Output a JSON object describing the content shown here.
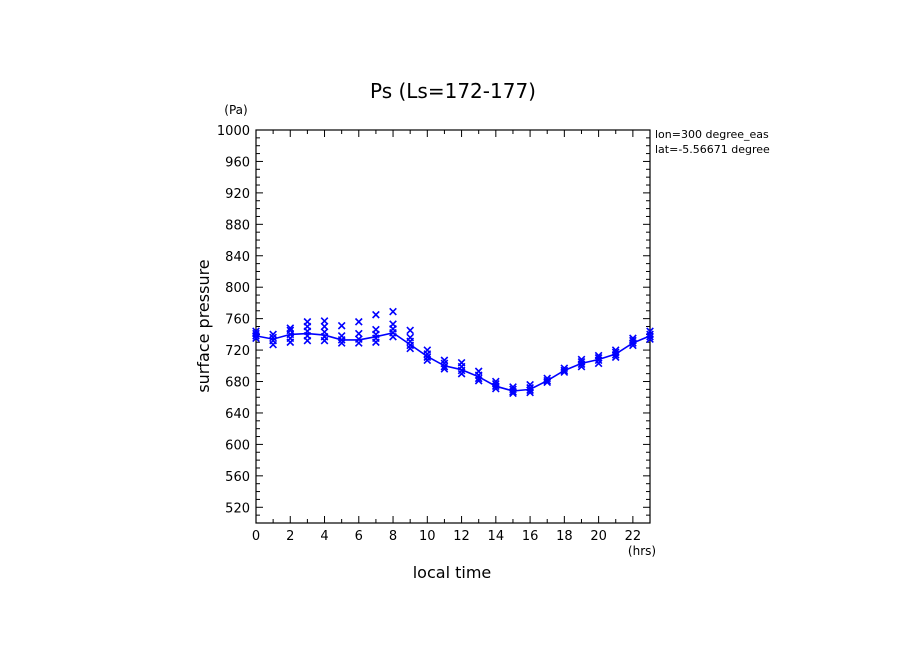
{
  "chart_data": {
    "type": "line",
    "title": "Ps (Ls=172-177)",
    "xlabel": "local time",
    "ylabel": "surface pressure",
    "x_unit": "(hrs)",
    "y_unit": "(Pa)",
    "xlim": [
      0,
      23
    ],
    "ylim": [
      500,
      1000
    ],
    "x_ticks": [
      0,
      2,
      4,
      6,
      8,
      10,
      12,
      14,
      16,
      18,
      20,
      22
    ],
    "y_ticks": [
      520,
      560,
      600,
      640,
      680,
      720,
      760,
      800,
      840,
      880,
      920,
      960,
      1000
    ],
    "grid": false,
    "annotations": [
      "lon=300 degree_eas",
      "lat=-5.56671 degree"
    ],
    "colors": {
      "series": "#0000ff",
      "axes": "#000000"
    },
    "series": [
      {
        "kind": "line",
        "x": [
          0,
          1,
          2,
          3,
          4,
          5,
          6,
          7,
          8,
          9,
          10,
          11,
          12,
          13,
          14,
          15,
          16,
          17,
          18,
          19,
          20,
          21,
          22,
          23
        ],
        "y": [
          738,
          734,
          740,
          741,
          739,
          733,
          733,
          737,
          742,
          727,
          712,
          700,
          695,
          686,
          674,
          668,
          670,
          681,
          694,
          703,
          708,
          715,
          729,
          738
        ]
      },
      {
        "kind": "scatter",
        "marker": "x",
        "points": [
          [
            0,
            735
          ],
          [
            0,
            738
          ],
          [
            0,
            741
          ],
          [
            0,
            744
          ],
          [
            1,
            727
          ],
          [
            1,
            732
          ],
          [
            1,
            736
          ],
          [
            1,
            740
          ],
          [
            2,
            730
          ],
          [
            2,
            735
          ],
          [
            2,
            740
          ],
          [
            2,
            745
          ],
          [
            2,
            748
          ],
          [
            3,
            732
          ],
          [
            3,
            738
          ],
          [
            3,
            744
          ],
          [
            3,
            750
          ],
          [
            3,
            756
          ],
          [
            4,
            732
          ],
          [
            4,
            737
          ],
          [
            4,
            743
          ],
          [
            4,
            750
          ],
          [
            4,
            757
          ],
          [
            5,
            729
          ],
          [
            5,
            733
          ],
          [
            5,
            738
          ],
          [
            5,
            751
          ],
          [
            6,
            729
          ],
          [
            6,
            734
          ],
          [
            6,
            741
          ],
          [
            6,
            756
          ],
          [
            7,
            730
          ],
          [
            7,
            735
          ],
          [
            7,
            740
          ],
          [
            7,
            746
          ],
          [
            7,
            765
          ],
          [
            8,
            737
          ],
          [
            8,
            742
          ],
          [
            8,
            747
          ],
          [
            8,
            753
          ],
          [
            8,
            769
          ],
          [
            9,
            722
          ],
          [
            9,
            726
          ],
          [
            9,
            731
          ],
          [
            9,
            736
          ],
          [
            9,
            745
          ],
          [
            10,
            707
          ],
          [
            10,
            711
          ],
          [
            10,
            715
          ],
          [
            10,
            720
          ],
          [
            11,
            696
          ],
          [
            11,
            699
          ],
          [
            11,
            703
          ],
          [
            11,
            707
          ],
          [
            12,
            690
          ],
          [
            12,
            694
          ],
          [
            12,
            699
          ],
          [
            12,
            704
          ],
          [
            13,
            681
          ],
          [
            13,
            684
          ],
          [
            13,
            688
          ],
          [
            13,
            693
          ],
          [
            14,
            671
          ],
          [
            14,
            674
          ],
          [
            14,
            677
          ],
          [
            14,
            680
          ],
          [
            15,
            665
          ],
          [
            15,
            667
          ],
          [
            15,
            670
          ],
          [
            15,
            673
          ],
          [
            16,
            666
          ],
          [
            16,
            669
          ],
          [
            16,
            672
          ],
          [
            16,
            676
          ],
          [
            17,
            679
          ],
          [
            17,
            681
          ],
          [
            17,
            684
          ],
          [
            18,
            692
          ],
          [
            18,
            694
          ],
          [
            18,
            697
          ],
          [
            19,
            699
          ],
          [
            19,
            702
          ],
          [
            19,
            705
          ],
          [
            19,
            708
          ],
          [
            20,
            703
          ],
          [
            20,
            707
          ],
          [
            20,
            710
          ],
          [
            20,
            713
          ],
          [
            21,
            711
          ],
          [
            21,
            714
          ],
          [
            21,
            717
          ],
          [
            21,
            720
          ],
          [
            22,
            726
          ],
          [
            22,
            729
          ],
          [
            22,
            732
          ],
          [
            22,
            735
          ],
          [
            23,
            734
          ],
          [
            23,
            737
          ],
          [
            23,
            740
          ],
          [
            23,
            744
          ]
        ]
      }
    ]
  }
}
